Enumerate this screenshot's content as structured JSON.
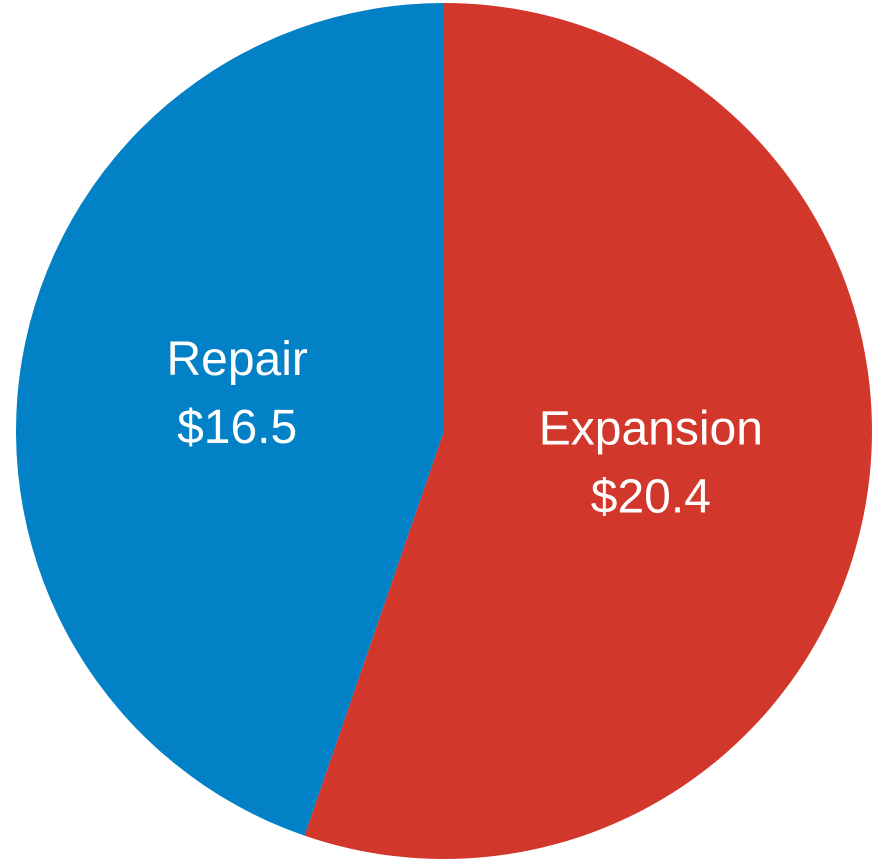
{
  "chart_data": {
    "type": "pie",
    "categories": [
      "Expansion",
      "Repair"
    ],
    "values": [
      20.4,
      16.5
    ],
    "value_labels": [
      "$20.4",
      "$16.5"
    ],
    "colors": [
      "#d2372b",
      "#0381c6"
    ]
  }
}
